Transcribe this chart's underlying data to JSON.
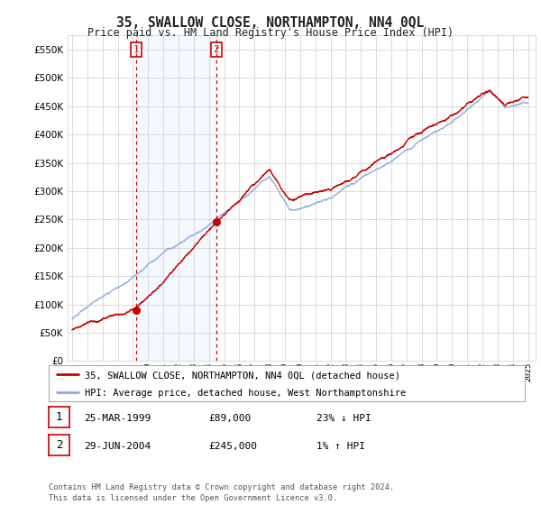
{
  "title": "35, SWALLOW CLOSE, NORTHAMPTON, NN4 0QL",
  "subtitle": "Price paid vs. HM Land Registry's House Price Index (HPI)",
  "legend_line1": "35, SWALLOW CLOSE, NORTHAMPTON, NN4 0QL (detached house)",
  "legend_line2": "HPI: Average price, detached house, West Northamptonshire",
  "transaction1_label": "1",
  "transaction1_date": "25-MAR-1999",
  "transaction1_price": "£89,000",
  "transaction1_hpi": "23% ↓ HPI",
  "transaction2_label": "2",
  "transaction2_date": "29-JUN-2004",
  "transaction2_price": "£245,000",
  "transaction2_hpi": "1% ↑ HPI",
  "footer": "Contains HM Land Registry data © Crown copyright and database right 2024.\nThis data is licensed under the Open Government Licence v3.0.",
  "price_color": "#cc0000",
  "hpi_color": "#88aadd",
  "vline_color": "#cc0000",
  "marker_color": "#cc0000",
  "background_color": "#ffffff",
  "grid_color": "#cccccc",
  "ylim": [
    0,
    575000
  ],
  "yticks": [
    0,
    50000,
    100000,
    150000,
    200000,
    250000,
    300000,
    350000,
    400000,
    450000,
    500000,
    550000
  ],
  "transaction1_x": 1999.23,
  "transaction2_x": 2004.49
}
